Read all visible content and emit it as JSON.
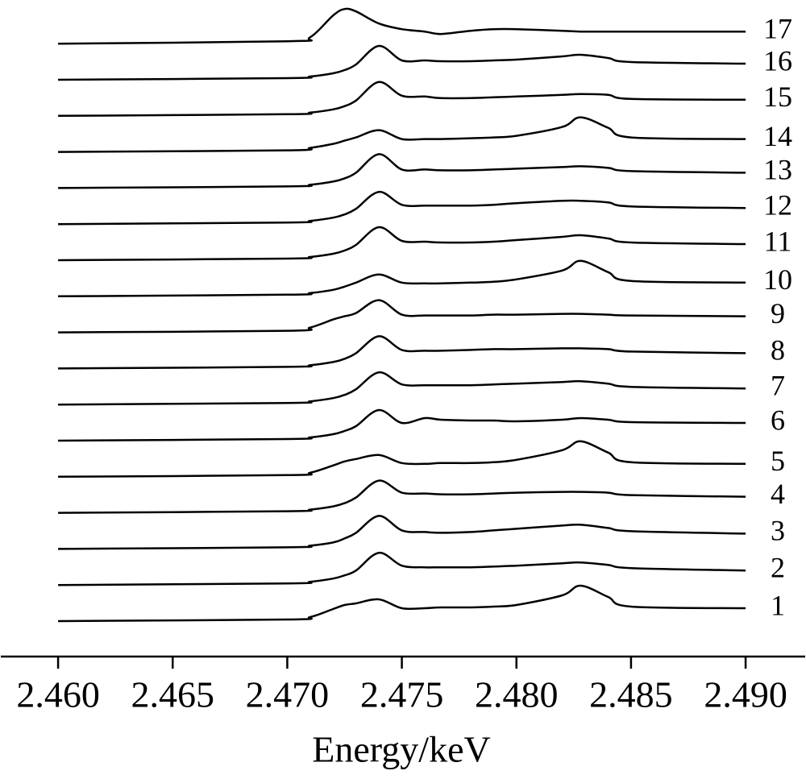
{
  "chart_data": {
    "type": "line",
    "x_label": "Energy/keV",
    "x": [
      2.46,
      2.47,
      2.471,
      2.472,
      2.4725,
      2.473,
      2.474,
      2.475,
      2.476,
      2.4767,
      2.478,
      2.479,
      2.48,
      2.482,
      2.4828,
      2.484,
      2.485,
      2.49
    ],
    "xlim": [
      2.4575,
      2.4926
    ],
    "xticks": [
      {
        "value": 2.46,
        "label": "2.460"
      },
      {
        "value": 2.465,
        "label": "2.465"
      },
      {
        "value": 2.47,
        "label": "2.470"
      },
      {
        "value": 2.475,
        "label": "2.475"
      },
      {
        "value": 2.48,
        "label": "2.480"
      },
      {
        "value": 2.485,
        "label": "2.485"
      },
      {
        "value": 2.49,
        "label": "2.490"
      }
    ],
    "series": [
      {
        "name": "1",
        "color": "#000000",
        "values": [
          0,
          2,
          5,
          15,
          20,
          22,
          27,
          16,
          16,
          17,
          17,
          18,
          20,
          32,
          44,
          30,
          18,
          16
        ]
      },
      {
        "name": "2",
        "color": "#000000",
        "values": [
          0,
          2,
          4,
          8,
          12,
          18,
          40,
          24,
          22,
          22,
          22,
          23,
          24,
          27,
          28,
          25,
          21,
          18
        ]
      },
      {
        "name": "3",
        "color": "#000000",
        "values": [
          0,
          2,
          4,
          8,
          13,
          20,
          41,
          23,
          21,
          20,
          21,
          23,
          25,
          29,
          30,
          26,
          22,
          19
        ]
      },
      {
        "name": "4",
        "color": "#000000",
        "values": [
          0,
          2,
          4,
          8,
          12,
          19,
          40,
          25,
          24,
          23,
          23,
          24,
          25,
          26,
          26,
          25,
          22,
          20
        ]
      },
      {
        "name": "5",
        "color": "#000000",
        "values": [
          0,
          2,
          5,
          14,
          19,
          22,
          27,
          17,
          16,
          17,
          17,
          18,
          21,
          33,
          44,
          30,
          18,
          16
        ]
      },
      {
        "name": "6",
        "color": "#000000",
        "values": [
          0,
          2,
          4,
          8,
          12,
          18,
          38,
          22,
          28,
          26,
          25,
          25,
          24,
          26,
          28,
          26,
          23,
          22
        ]
      },
      {
        "name": "7",
        "color": "#000000",
        "values": [
          0,
          2,
          4,
          8,
          12,
          19,
          40,
          25,
          24,
          24,
          24,
          25,
          26,
          28,
          29,
          26,
          22,
          20
        ]
      },
      {
        "name": "8",
        "color": "#000000",
        "values": [
          0,
          2,
          4,
          8,
          12,
          19,
          40,
          23,
          22,
          22,
          23,
          24,
          24,
          25,
          25,
          24,
          21,
          19
        ]
      },
      {
        "name": "9",
        "color": "#000000",
        "values": [
          0,
          2,
          6,
          16,
          20,
          24,
          40,
          22,
          21,
          21,
          21,
          22,
          22,
          23,
          23,
          22,
          21,
          20
        ]
      },
      {
        "name": "10",
        "color": "#000000",
        "values": [
          0,
          2,
          4,
          8,
          12,
          17,
          27,
          17,
          16,
          16,
          17,
          18,
          21,
          32,
          44,
          30,
          19,
          17
        ]
      },
      {
        "name": "11",
        "color": "#000000",
        "values": [
          0,
          2,
          4,
          8,
          12,
          19,
          41,
          24,
          23,
          22,
          22,
          23,
          25,
          29,
          31,
          27,
          22,
          20
        ]
      },
      {
        "name": "12",
        "color": "#000000",
        "values": [
          0,
          2,
          4,
          8,
          12,
          19,
          40,
          24,
          23,
          23,
          23,
          24,
          26,
          29,
          29,
          27,
          22,
          20
        ]
      },
      {
        "name": "13",
        "color": "#000000",
        "values": [
          0,
          2,
          4,
          8,
          12,
          19,
          42,
          23,
          23,
          22,
          22,
          23,
          24,
          26,
          27,
          25,
          21,
          19
        ]
      },
      {
        "name": "14",
        "color": "#000000",
        "values": [
          0,
          2,
          5,
          10,
          14,
          18,
          27,
          16,
          16,
          16,
          17,
          18,
          20,
          31,
          43,
          30,
          18,
          16
        ]
      },
      {
        "name": "15",
        "color": "#000000",
        "values": [
          0,
          2,
          4,
          8,
          12,
          19,
          42,
          25,
          24,
          22,
          22,
          23,
          24,
          26,
          27,
          26,
          21,
          20
        ]
      },
      {
        "name": "16",
        "color": "#000000",
        "values": [
          0,
          2,
          4,
          8,
          12,
          19,
          42,
          24,
          24,
          23,
          23,
          24,
          25,
          29,
          31,
          27,
          22,
          20
        ]
      },
      {
        "name": "17",
        "color": "#000000",
        "values": [
          0,
          3,
          8,
          35,
          43,
          40,
          25,
          18,
          15,
          12,
          16,
          18,
          18,
          16,
          15,
          15,
          15,
          15
        ]
      }
    ]
  }
}
